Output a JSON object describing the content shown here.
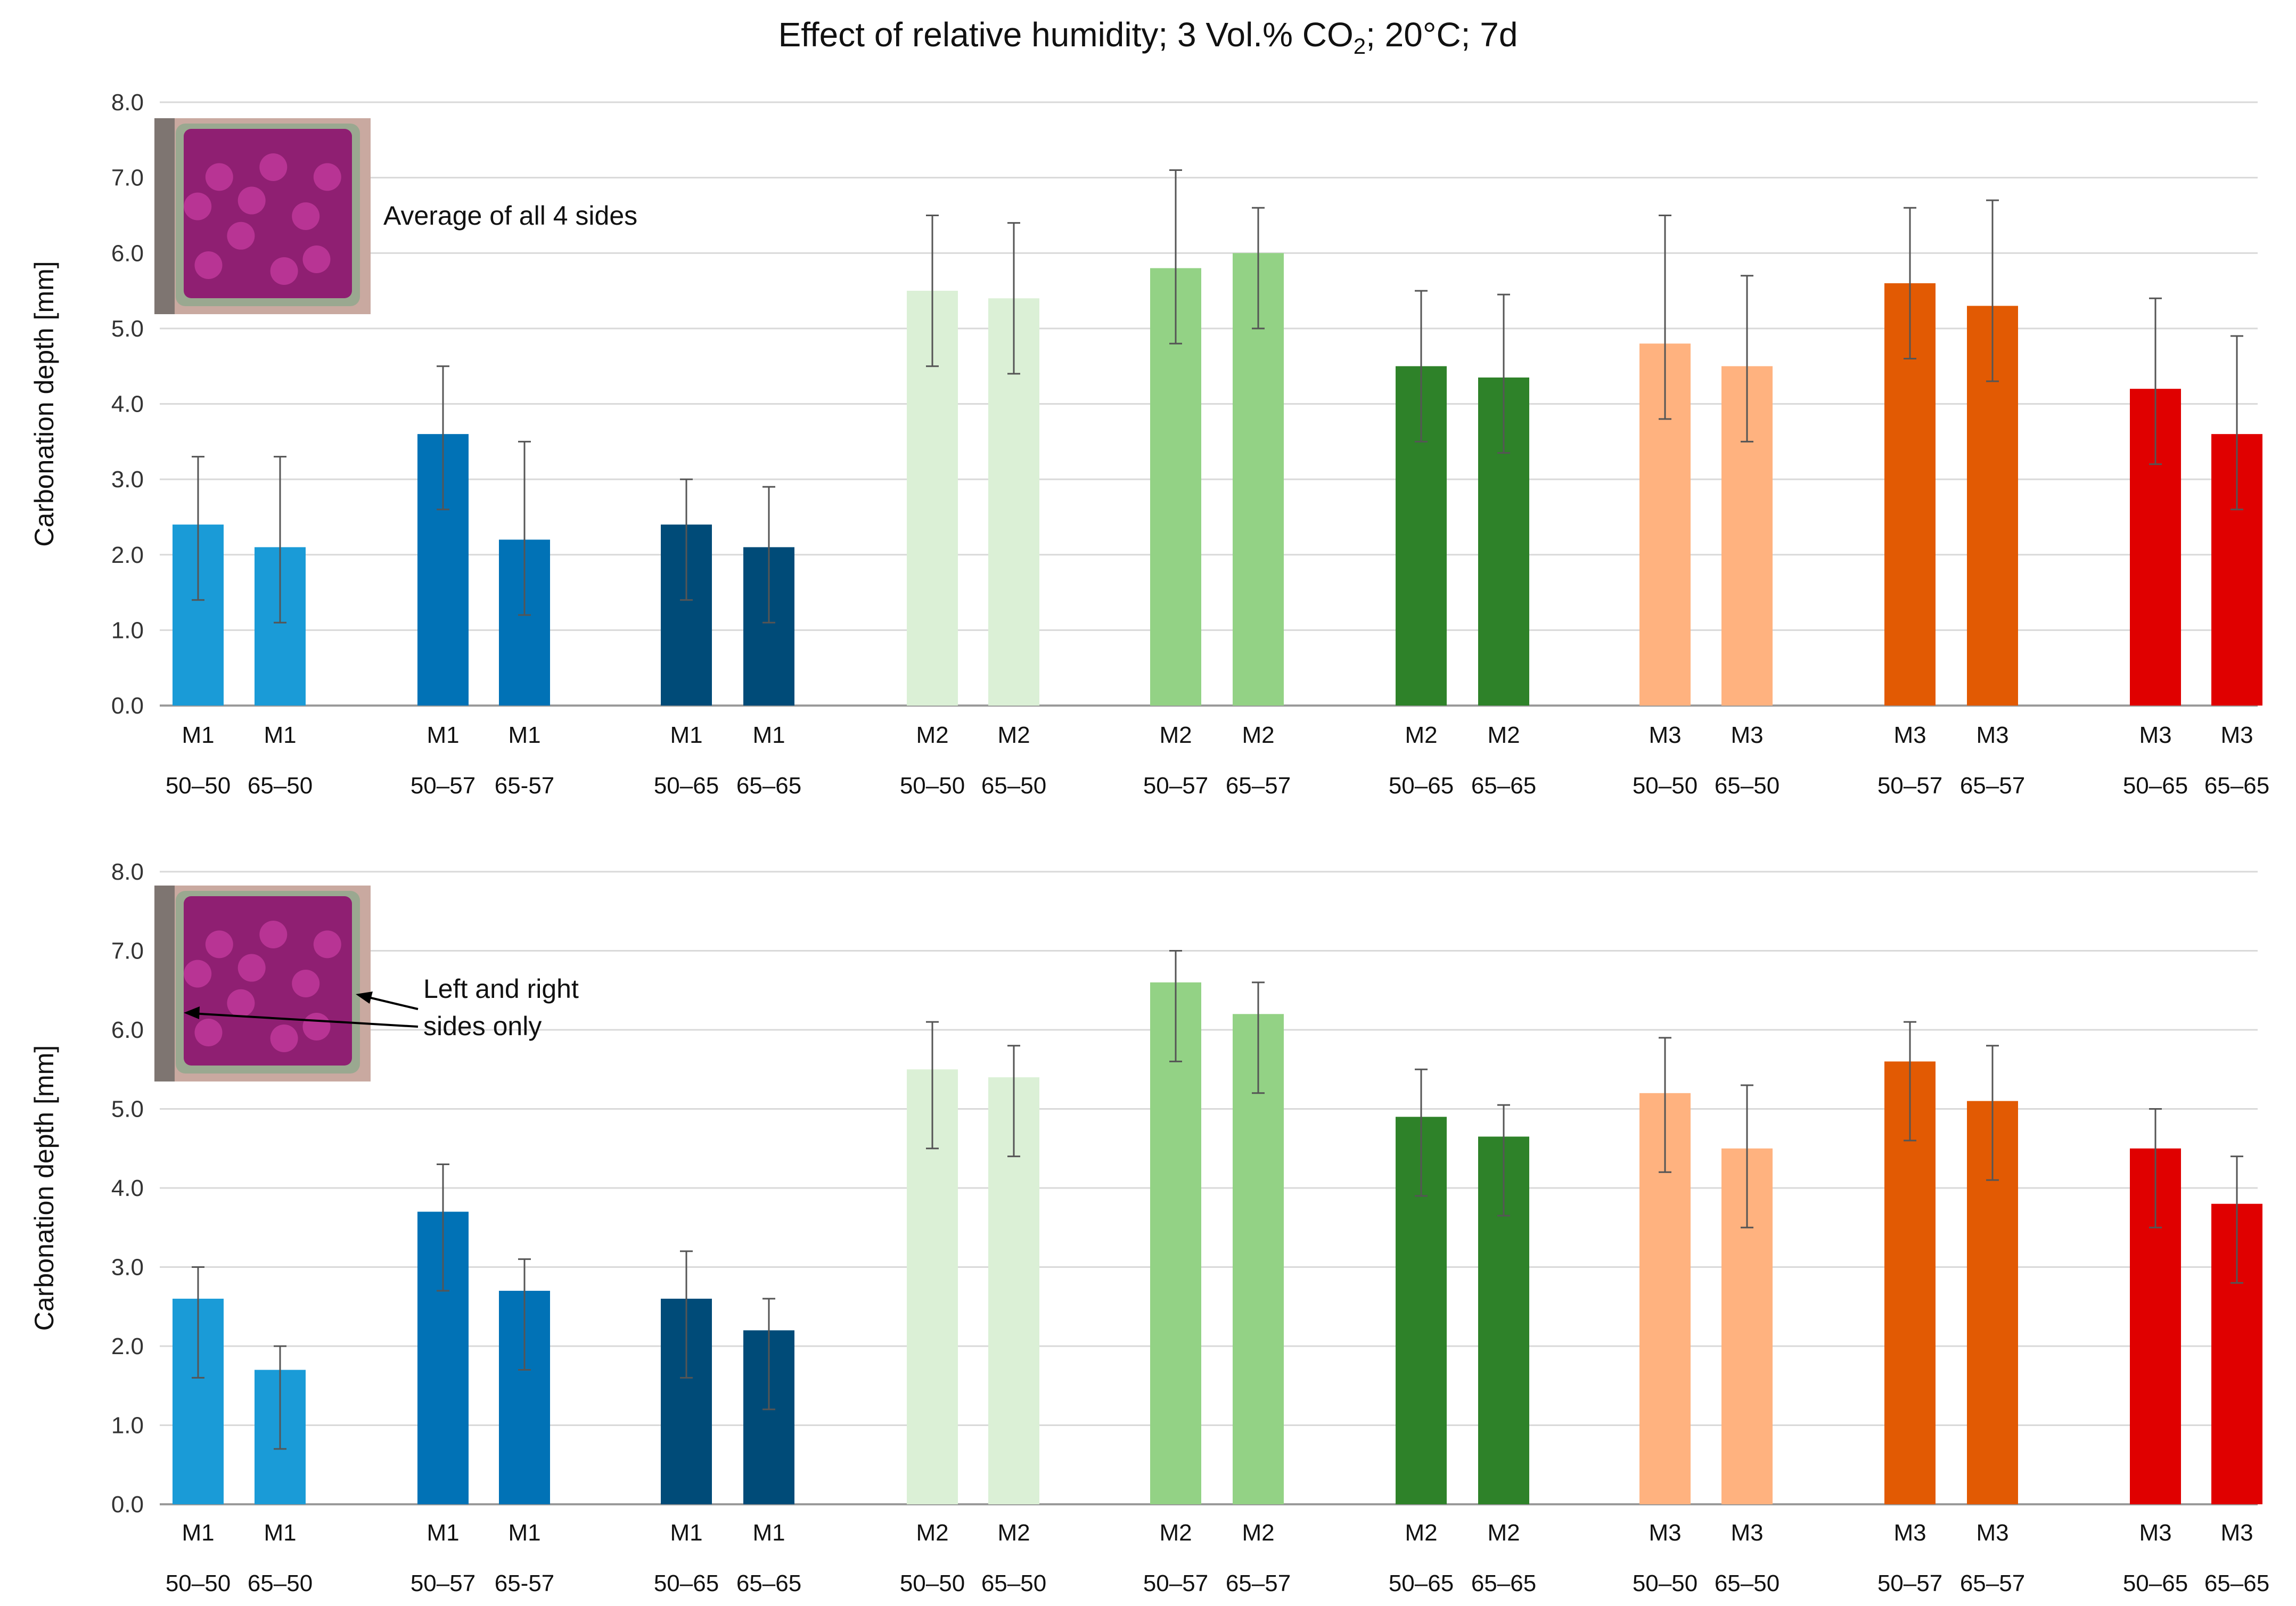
{
  "title_main": "Effect of relative humidity; 3 Vol.% CO",
  "title_sub": "2",
  "title_rest": "; 20°C; 7d",
  "chart_data": [
    {
      "type": "bar",
      "title": "Effect of relative humidity; 3 Vol.% CO2; 20°C; 7d",
      "annotation": "Average of all 4 sides",
      "ylabel": "Carbonation depth  [mm]",
      "xlabel": "",
      "ylim": [
        0,
        8
      ],
      "yticks": [
        "0.0",
        "1.0",
        "2.0",
        "3.0",
        "4.0",
        "5.0",
        "6.0",
        "7.0",
        "8.0"
      ],
      "grid": true,
      "categories_top": [
        "M1",
        "M1",
        "M1",
        "M1",
        "M1",
        "M1",
        "M2",
        "M2",
        "M2",
        "M2",
        "M2",
        "M2",
        "M3",
        "M3",
        "M3",
        "M3",
        "M3",
        "M3"
      ],
      "categories_bottom": [
        "50–50",
        "65–50",
        "50–57",
        "65-57",
        "50–65",
        "65–65",
        "50–50",
        "65–50",
        "50–57",
        "65–57",
        "50–65",
        "65–65",
        "50–50",
        "65–50",
        "50–57",
        "65–57",
        "50–65",
        "65–65"
      ],
      "values": [
        2.4,
        2.1,
        3.6,
        2.2,
        2.4,
        2.1,
        5.5,
        5.4,
        5.8,
        6.0,
        4.5,
        4.35,
        4.8,
        4.5,
        5.6,
        5.3,
        4.2,
        3.6
      ],
      "err_low": [
        1.4,
        1.1,
        2.6,
        1.2,
        1.4,
        1.1,
        4.5,
        4.4,
        4.8,
        5.0,
        3.5,
        3.35,
        3.8,
        3.5,
        4.6,
        4.3,
        3.2,
        2.6
      ],
      "err_high": [
        3.3,
        3.3,
        4.5,
        3.5,
        3.0,
        2.9,
        6.5,
        6.4,
        7.1,
        6.6,
        5.5,
        5.45,
        6.5,
        5.7,
        6.6,
        6.7,
        5.4,
        4.9
      ],
      "colors": [
        "#1a9bd7",
        "#1a9bd7",
        "#0172b6",
        "#0172b6",
        "#004b78",
        "#004b78",
        "#dbf0d6",
        "#dbf0d6",
        "#93d285",
        "#93d285",
        "#2e8229",
        "#2e8229",
        "#ffb27f",
        "#ffb27f",
        "#e25a03",
        "#e25a03",
        "#e00000",
        "#e00000"
      ]
    },
    {
      "type": "bar",
      "annotation_line1": "Left and right",
      "annotation_line2": "sides only",
      "ylabel": "Carbonation depth  [mm]",
      "xlabel": "",
      "ylim": [
        0,
        8
      ],
      "yticks": [
        "0.0",
        "1.0",
        "2.0",
        "3.0",
        "4.0",
        "5.0",
        "6.0",
        "7.0",
        "8.0"
      ],
      "grid": true,
      "categories_top": [
        "M1",
        "M1",
        "M1",
        "M1",
        "M1",
        "M1",
        "M2",
        "M2",
        "M2",
        "M2",
        "M2",
        "M2",
        "M3",
        "M3",
        "M3",
        "M3",
        "M3",
        "M3"
      ],
      "categories_bottom": [
        "50–50",
        "65–50",
        "50–57",
        "65-57",
        "50–65",
        "65–65",
        "50–50",
        "65–50",
        "50–57",
        "65–57",
        "50–65",
        "65–65",
        "50–50",
        "65–50",
        "50–57",
        "65–57",
        "50–65",
        "65–65"
      ],
      "values": [
        2.6,
        1.7,
        3.7,
        2.7,
        2.6,
        2.2,
        5.5,
        5.4,
        6.6,
        6.2,
        4.9,
        4.65,
        5.2,
        4.5,
        5.6,
        5.1,
        4.5,
        3.8
      ],
      "err_low": [
        1.6,
        0.7,
        2.7,
        1.7,
        1.6,
        1.2,
        4.5,
        4.4,
        5.6,
        5.2,
        3.9,
        3.65,
        4.2,
        3.5,
        4.6,
        4.1,
        3.5,
        2.8
      ],
      "err_high": [
        3.0,
        2.0,
        4.3,
        3.1,
        3.2,
        2.6,
        6.1,
        5.8,
        7.0,
        6.6,
        5.5,
        5.05,
        5.9,
        5.3,
        6.1,
        5.8,
        5.0,
        4.4
      ],
      "colors": [
        "#1a9bd7",
        "#1a9bd7",
        "#0172b6",
        "#0172b6",
        "#004b78",
        "#004b78",
        "#dbf0d6",
        "#dbf0d6",
        "#93d285",
        "#93d285",
        "#2e8229",
        "#2e8229",
        "#ffb27f",
        "#ffb27f",
        "#e25a03",
        "#e25a03",
        "#e00000",
        "#e00000"
      ]
    }
  ]
}
